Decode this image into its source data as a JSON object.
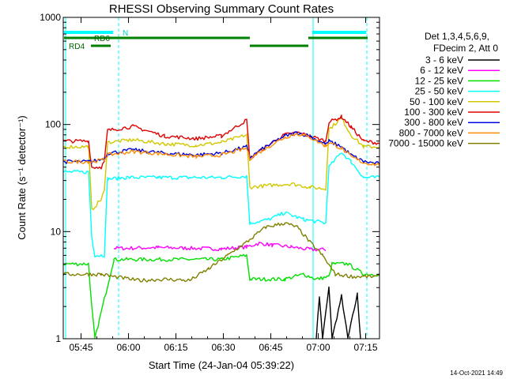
{
  "chart_data": {
    "type": "line",
    "title": "RHESSI Observing Summary Count Rates",
    "xlabel": "Start Time (24-Jan-04 05:39:22)",
    "ylabel": "Count Rate (s⁻¹ detector⁻¹)",
    "ylog": true,
    "ylim": [
      1,
      1000
    ],
    "xlim_minutes_after_start": [
      0,
      100
    ],
    "x_ticks": [
      "05:45",
      "06:00",
      "06:15",
      "06:30",
      "06:45",
      "07:00",
      "07:15"
    ],
    "y_ticks": [
      "1",
      "10",
      "100",
      "1000"
    ],
    "footer_timestamp": "14-Oct-2021 14:49",
    "legend": {
      "placement": "top-right",
      "header": [
        "Det 1,3,4,5,6,9,",
        "FDecim 2, Att 0"
      ],
      "entries": [
        {
          "label": "3 - 6 keV",
          "color": "#000000"
        },
        {
          "label": "6 - 12 keV",
          "color": "#ff00ff"
        },
        {
          "label": "12 - 25 keV",
          "color": "#00e000"
        },
        {
          "label": "25 - 50 keV",
          "color": "#00ffff"
        },
        {
          "label": "50 - 100 keV",
          "color": "#d2c800"
        },
        {
          "label": "100 - 300 keV",
          "color": "#e00000"
        },
        {
          "label": "300 - 800 keV",
          "color": "#0000e0"
        },
        {
          "label": "800 - 7000 keV",
          "color": "#ff8c00"
        },
        {
          "label": "7000 - 15000 keV",
          "color": "#808000"
        }
      ]
    },
    "flags": {
      "n_label": "N",
      "rd0_label": "RD0",
      "rd4_label": "RD4"
    },
    "series": [
      {
        "name": "3 - 6 keV",
        "color": "#000000",
        "points": [
          [
            80,
            1
          ],
          [
            81,
            2.5
          ],
          [
            82,
            1
          ],
          [
            84,
            3
          ],
          [
            85,
            1
          ],
          [
            88,
            2.5
          ],
          [
            90,
            1
          ],
          [
            93,
            2.6
          ],
          [
            94,
            1
          ]
        ]
      },
      {
        "name": "6 - 12 keV",
        "color": "#ff00ff",
        "points": [
          [
            16,
            7
          ],
          [
            20,
            7
          ],
          [
            30,
            7.1
          ],
          [
            40,
            7
          ],
          [
            50,
            6.9
          ],
          [
            58,
            7.2
          ],
          [
            62,
            7.8
          ],
          [
            66,
            7.5
          ],
          [
            72,
            7.2
          ],
          [
            78,
            6.8
          ],
          [
            83,
            6.8
          ]
        ]
      },
      {
        "name": "12 - 25 keV",
        "color": "#00e000",
        "points": [
          [
            0,
            5
          ],
          [
            8,
            5
          ],
          [
            9,
            2
          ],
          [
            10,
            1
          ],
          [
            16,
            5.5
          ],
          [
            30,
            5.5
          ],
          [
            50,
            5.5
          ],
          [
            58,
            6
          ],
          [
            59,
            3.6
          ],
          [
            70,
            3.6
          ],
          [
            76,
            4
          ],
          [
            80,
            3.6
          ],
          [
            84,
            3.8
          ],
          [
            85,
            5
          ],
          [
            90,
            5
          ],
          [
            95,
            4
          ],
          [
            100,
            4
          ]
        ]
      },
      {
        "name": "25 - 50 keV",
        "color": "#00ffff",
        "points": [
          [
            0,
            36
          ],
          [
            8,
            36
          ],
          [
            9,
            9
          ],
          [
            10,
            6
          ],
          [
            13,
            6
          ],
          [
            14,
            31
          ],
          [
            20,
            32
          ],
          [
            30,
            32
          ],
          [
            40,
            32
          ],
          [
            50,
            32
          ],
          [
            58,
            33
          ],
          [
            59,
            12
          ],
          [
            65,
            13
          ],
          [
            70,
            15
          ],
          [
            76,
            13
          ],
          [
            83,
            12
          ],
          [
            84,
            40
          ],
          [
            88,
            55
          ],
          [
            91,
            45
          ],
          [
            95,
            32
          ],
          [
            100,
            32
          ]
        ]
      },
      {
        "name": "50 - 100 keV",
        "color": "#d2c800",
        "points": [
          [
            0,
            62
          ],
          [
            8,
            62
          ],
          [
            9,
            16
          ],
          [
            12,
            20
          ],
          [
            13,
            24
          ],
          [
            14,
            68
          ],
          [
            22,
            72
          ],
          [
            32,
            66
          ],
          [
            42,
            64
          ],
          [
            50,
            68
          ],
          [
            58,
            80
          ],
          [
            59,
            26
          ],
          [
            65,
            27
          ],
          [
            72,
            28
          ],
          [
            78,
            26
          ],
          [
            83,
            25
          ],
          [
            84,
            90
          ],
          [
            88,
            115
          ],
          [
            91,
            80
          ],
          [
            95,
            62
          ],
          [
            100,
            62
          ]
        ]
      },
      {
        "name": "100 - 300 keV",
        "color": "#e00000",
        "points": [
          [
            0,
            70
          ],
          [
            8,
            70
          ],
          [
            9,
            40
          ],
          [
            12,
            40
          ],
          [
            13,
            45
          ],
          [
            14,
            88
          ],
          [
            22,
            96
          ],
          [
            32,
            78
          ],
          [
            42,
            74
          ],
          [
            50,
            78
          ],
          [
            58,
            110
          ],
          [
            59,
            48
          ],
          [
            64,
            62
          ],
          [
            70,
            80
          ],
          [
            74,
            84
          ],
          [
            78,
            78
          ],
          [
            83,
            70
          ],
          [
            84,
            105
          ],
          [
            88,
            118
          ],
          [
            91,
            95
          ],
          [
            95,
            70
          ],
          [
            100,
            67
          ]
        ]
      },
      {
        "name": "300 - 800 keV",
        "color": "#0000e0",
        "points": [
          [
            0,
            45
          ],
          [
            8,
            45
          ],
          [
            9,
            45
          ],
          [
            13,
            48
          ],
          [
            14,
            54
          ],
          [
            22,
            58
          ],
          [
            32,
            54
          ],
          [
            42,
            52
          ],
          [
            50,
            54
          ],
          [
            58,
            62
          ],
          [
            59,
            49
          ],
          [
            64,
            62
          ],
          [
            70,
            78
          ],
          [
            74,
            84
          ],
          [
            78,
            78
          ],
          [
            83,
            65
          ],
          [
            84,
            70
          ],
          [
            88,
            62
          ],
          [
            91,
            52
          ],
          [
            95,
            45
          ],
          [
            100,
            43
          ]
        ]
      },
      {
        "name": "800 - 7000 keV",
        "color": "#ff8c00",
        "points": [
          [
            0,
            45
          ],
          [
            8,
            45
          ],
          [
            9,
            45
          ],
          [
            13,
            47
          ],
          [
            14,
            52
          ],
          [
            22,
            56
          ],
          [
            32,
            53
          ],
          [
            42,
            50
          ],
          [
            50,
            52
          ],
          [
            58,
            60
          ],
          [
            59,
            48
          ],
          [
            64,
            60
          ],
          [
            70,
            76
          ],
          [
            74,
            82
          ],
          [
            78,
            76
          ],
          [
            83,
            63
          ],
          [
            84,
            68
          ],
          [
            88,
            60
          ],
          [
            91,
            50
          ],
          [
            95,
            44
          ],
          [
            100,
            42
          ]
        ]
      },
      {
        "name": "7000 - 15000 keV",
        "color": "#808000",
        "points": [
          [
            0,
            4
          ],
          [
            8,
            4
          ],
          [
            12,
            4
          ],
          [
            16,
            3.8
          ],
          [
            24,
            3.5
          ],
          [
            32,
            3.6
          ],
          [
            40,
            3.5
          ],
          [
            46,
            4.5
          ],
          [
            52,
            6
          ],
          [
            58,
            8
          ],
          [
            64,
            11
          ],
          [
            70,
            12
          ],
          [
            74,
            11
          ],
          [
            78,
            8
          ],
          [
            82,
            6
          ],
          [
            86,
            4
          ],
          [
            92,
            3.8
          ],
          [
            100,
            3.8
          ]
        ]
      }
    ]
  }
}
